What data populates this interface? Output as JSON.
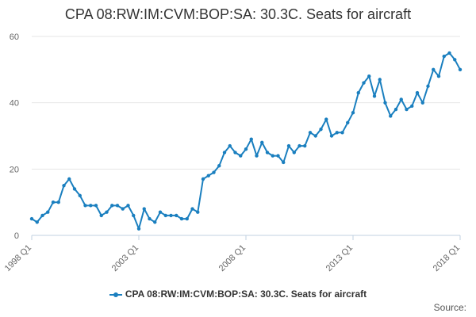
{
  "chart_data": {
    "type": "line",
    "title": "CPA 08:RW:IM:CVM:BOP:SA: 30.3C. Seats for aircraft",
    "xlabel": "",
    "ylabel": "",
    "x_start": "1998 Q1",
    "x_tick_labels": [
      "1998 Q1",
      "2003 Q1",
      "2008 Q1",
      "2013 Q1",
      "2018 Q1"
    ],
    "y_ticks": [
      0,
      20,
      40,
      60
    ],
    "ylim": [
      0,
      60
    ],
    "grid": true,
    "legend_position": "bottom",
    "color": "#1a7fbf",
    "series": [
      {
        "name": "CPA 08:RW:IM:CVM:BOP:SA: 30.3C. Seats for aircraft",
        "x": [
          "1998 Q1",
          "1998 Q2",
          "1998 Q3",
          "1998 Q4",
          "1999 Q1",
          "1999 Q2",
          "1999 Q3",
          "1999 Q4",
          "2000 Q1",
          "2000 Q2",
          "2000 Q3",
          "2000 Q4",
          "2001 Q1",
          "2001 Q2",
          "2001 Q3",
          "2001 Q4",
          "2002 Q1",
          "2002 Q2",
          "2002 Q3",
          "2002 Q4",
          "2003 Q1",
          "2003 Q2",
          "2003 Q3",
          "2003 Q4",
          "2004 Q1",
          "2004 Q2",
          "2004 Q3",
          "2004 Q4",
          "2005 Q1",
          "2005 Q2",
          "2005 Q3",
          "2005 Q4",
          "2006 Q1",
          "2006 Q2",
          "2006 Q3",
          "2006 Q4",
          "2007 Q1",
          "2007 Q2",
          "2007 Q3",
          "2007 Q4",
          "2008 Q1",
          "2008 Q2",
          "2008 Q3",
          "2008 Q4",
          "2009 Q1",
          "2009 Q2",
          "2009 Q3",
          "2009 Q4",
          "2010 Q1",
          "2010 Q2",
          "2010 Q3",
          "2010 Q4",
          "2011 Q1",
          "2011 Q2",
          "2011 Q3",
          "2011 Q4",
          "2012 Q1",
          "2012 Q2",
          "2012 Q3",
          "2012 Q4",
          "2013 Q1",
          "2013 Q2",
          "2013 Q3",
          "2013 Q4",
          "2014 Q1",
          "2014 Q2",
          "2014 Q3",
          "2014 Q4",
          "2015 Q1",
          "2015 Q2",
          "2015 Q3",
          "2015 Q4",
          "2016 Q1",
          "2016 Q2",
          "2016 Q3",
          "2016 Q4",
          "2017 Q1",
          "2017 Q2",
          "2017 Q3",
          "2017 Q4",
          "2018 Q1"
        ],
        "values": [
          5,
          4,
          6,
          7,
          10,
          10,
          15,
          17,
          14,
          12,
          9,
          9,
          9,
          6,
          7,
          9,
          9,
          8,
          9,
          6,
          2,
          8,
          5,
          4,
          7,
          6,
          6,
          6,
          5,
          5,
          8,
          7,
          17,
          18,
          19,
          21,
          25,
          27,
          25,
          24,
          26,
          29,
          24,
          28,
          25,
          24,
          24,
          22,
          27,
          25,
          27,
          27,
          31,
          30,
          32,
          35,
          30,
          31,
          31,
          34,
          37,
          43,
          46,
          48,
          42,
          47,
          40,
          36,
          38,
          41,
          38,
          39,
          43,
          40,
          45,
          50,
          48,
          54,
          55,
          53,
          50
        ]
      }
    ]
  },
  "legend": {
    "label": "CPA 08:RW:IM:CVM:BOP:SA: 30.3C. Seats for aircraft"
  },
  "source_label": "Source:"
}
